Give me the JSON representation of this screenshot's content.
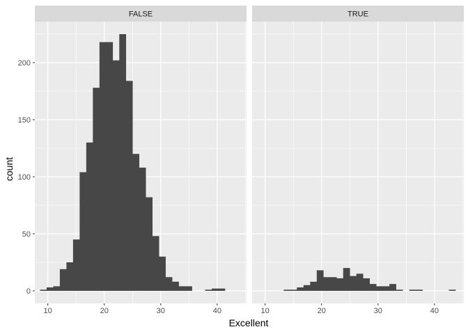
{
  "chart_data": {
    "type": "bar",
    "subtype": "faceted-histogram",
    "xlabel": "Excellent",
    "ylabel": "count",
    "xlim": [
      7.7,
      45.2
    ],
    "ylim": [
      -11,
      236
    ],
    "x_ticks": [
      10,
      20,
      30,
      40
    ],
    "y_ticks": [
      0,
      50,
      100,
      150,
      200
    ],
    "bin_width": 1.17,
    "bin_start": 8.62,
    "grid": true,
    "colors": {
      "bar": "#474747",
      "panel_bg": "#ebebeb",
      "grid_major": "#ffffff",
      "strip_bg": "#d9d9d9"
    },
    "facets": [
      {
        "label": "FALSE",
        "counts": [
          1,
          3,
          4,
          19,
          25,
          45,
          104,
          130,
          178,
          218,
          218,
          202,
          225,
          184,
          120,
          108,
          82,
          48,
          30,
          12,
          8,
          4,
          4,
          0,
          0,
          1,
          2,
          2,
          0,
          0,
          0,
          0
        ]
      },
      {
        "label": "TRUE",
        "counts": [
          0,
          0,
          0,
          0,
          1,
          1,
          3,
          5,
          8,
          18,
          12,
          12,
          11,
          20,
          13,
          15,
          11,
          6,
          4,
          4,
          6,
          1,
          0,
          1,
          1,
          0,
          0,
          0,
          0,
          1,
          0,
          0
        ]
      }
    ]
  }
}
